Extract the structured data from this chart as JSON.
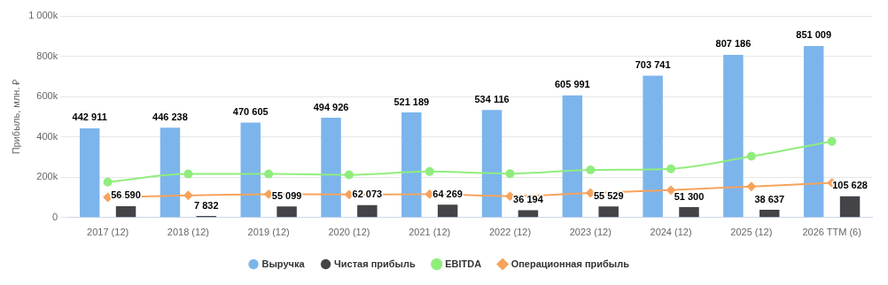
{
  "chart_data": {
    "type": "bar",
    "ylabel": "Прибыль, млн. ₽",
    "categories": [
      "2017 (12)",
      "2018 (12)",
      "2019 (12)",
      "2020 (12)",
      "2021 (12)",
      "2022 (12)",
      "2023 (12)",
      "2024 (12)",
      "2025 (12)",
      "2026 TTM (6)"
    ],
    "series": [
      {
        "name": "Выручка",
        "color": "#7cb5ec",
        "values": [
          442911,
          446238,
          470605,
          494926,
          521189,
          534116,
          605991,
          703741,
          807186,
          851009
        ],
        "value_labels": [
          "442 911",
          "446 238",
          "470 605",
          "494 926",
          "521 189",
          "534 116",
          "605 991",
          "703 741",
          "807 186",
          "851 009"
        ]
      },
      {
        "name": "Чистая прибыль",
        "color": "#434348",
        "values": [
          56590,
          7832,
          55099,
          62073,
          64269,
          36194,
          55529,
          51300,
          38637,
          105628
        ],
        "value_labels": [
          "56 590",
          "7 832",
          "55 099",
          "62 073",
          "64 269",
          "36 194",
          "55 529",
          "51 300",
          "38 637",
          "105 628"
        ]
      },
      {
        "name": "EBITDA",
        "type": "line",
        "color": "#90ed7d",
        "marker": "circle",
        "values": [
          176000,
          216000,
          216000,
          212000,
          228000,
          218000,
          236000,
          242000,
          304000,
          378000
        ]
      },
      {
        "name": "Операционная прибыль",
        "type": "line",
        "color": "#f7a35c",
        "marker": "diamond",
        "values": [
          100000,
          110000,
          116000,
          114000,
          116000,
          106000,
          122000,
          136000,
          154000,
          172000
        ]
      }
    ],
    "ylim": [
      0,
      1000000
    ],
    "yticks": [
      {
        "value": 0,
        "label": "0"
      },
      {
        "value": 200000,
        "label": "200k"
      },
      {
        "value": 400000,
        "label": "400k"
      },
      {
        "value": 600000,
        "label": "600k"
      },
      {
        "value": 800000,
        "label": "800k"
      },
      {
        "value": 1000000,
        "label": "1 000k"
      }
    ],
    "grid": "y",
    "legend": "bottom"
  }
}
